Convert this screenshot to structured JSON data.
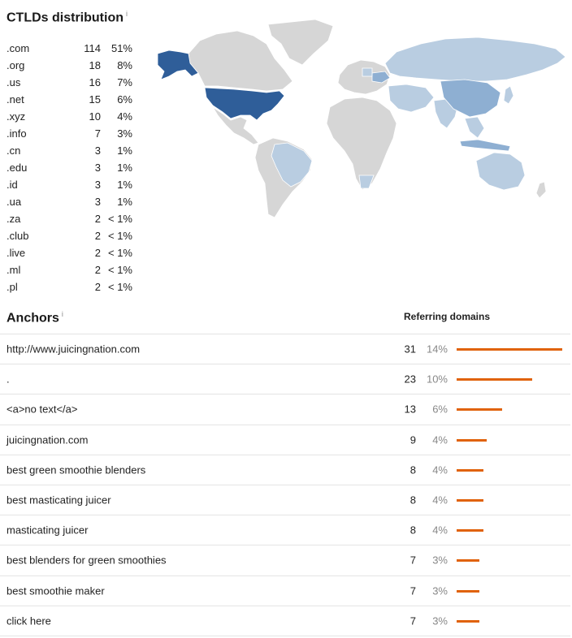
{
  "ctld": {
    "title": "CTLDs distribution",
    "info": "i",
    "rows": [
      {
        "tld": ".com",
        "count": "114",
        "pct": "51%"
      },
      {
        "tld": ".org",
        "count": "18",
        "pct": "8%"
      },
      {
        "tld": ".us",
        "count": "16",
        "pct": "7%"
      },
      {
        "tld": ".net",
        "count": "15",
        "pct": "6%"
      },
      {
        "tld": ".xyz",
        "count": "10",
        "pct": "4%"
      },
      {
        "tld": ".info",
        "count": "7",
        "pct": "3%"
      },
      {
        "tld": ".cn",
        "count": "3",
        "pct": "1%"
      },
      {
        "tld": ".edu",
        "count": "3",
        "pct": "1%"
      },
      {
        "tld": ".id",
        "count": "3",
        "pct": "1%"
      },
      {
        "tld": ".ua",
        "count": "3",
        "pct": "1%"
      },
      {
        "tld": ".za",
        "count": "2",
        "pct": "< 1%"
      },
      {
        "tld": ".club",
        "count": "2",
        "pct": "< 1%"
      },
      {
        "tld": ".live",
        "count": "2",
        "pct": "< 1%"
      },
      {
        "tld": ".ml",
        "count": "2",
        "pct": "< 1%"
      },
      {
        "tld": ".pl",
        "count": "2",
        "pct": "< 1%"
      }
    ]
  },
  "map_colors": {
    "none": "#d6d6d6",
    "low": "#b9cde1",
    "mid": "#8eafd2",
    "high": "#2f5e99",
    "border": "#ffffff"
  },
  "anchors": {
    "title": "Anchors",
    "info": "i",
    "column_header": "Referring domains",
    "bar_color": "#e0620a",
    "rows": [
      {
        "text": "http://www.juicingnation.com",
        "count": "31",
        "pct": "14%",
        "share": 0.14
      },
      {
        "text": ".",
        "count": "23",
        "pct": "10%",
        "share": 0.1
      },
      {
        "text": "<a>no text</a>",
        "count": "13",
        "pct": "6%",
        "share": 0.06
      },
      {
        "text": "juicingnation.com",
        "count": "9",
        "pct": "4%",
        "share": 0.04
      },
      {
        "text": "best green smoothie blenders",
        "count": "8",
        "pct": "4%",
        "share": 0.035
      },
      {
        "text": "best masticating juicer",
        "count": "8",
        "pct": "4%",
        "share": 0.035
      },
      {
        "text": "masticating juicer",
        "count": "8",
        "pct": "4%",
        "share": 0.035
      },
      {
        "text": "best blenders for green smoothies",
        "count": "7",
        "pct": "3%",
        "share": 0.03
      },
      {
        "text": "best smoothie maker",
        "count": "7",
        "pct": "3%",
        "share": 0.03
      },
      {
        "text": "click here",
        "count": "7",
        "pct": "3%",
        "share": 0.03
      }
    ]
  }
}
